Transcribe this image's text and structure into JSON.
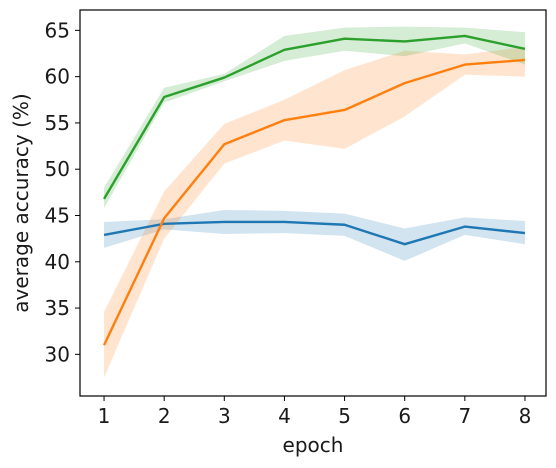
{
  "chart_data": {
    "type": "line",
    "xlabel": "epoch",
    "ylabel": "average accuracy (%)",
    "xlim": [
      0.6,
      8.35
    ],
    "ylim": [
      25.5,
      67.2
    ],
    "x_ticks": [
      1,
      2,
      3,
      4,
      5,
      6,
      7,
      8
    ],
    "y_ticks": [
      30,
      35,
      40,
      45,
      50,
      55,
      60,
      65
    ],
    "grid": false,
    "x": [
      1,
      2,
      3,
      4,
      5,
      6,
      7,
      8
    ],
    "series": [
      {
        "color": "#1f77b4",
        "values": [
          42.9,
          44.1,
          44.3,
          44.3,
          44.0,
          41.9,
          43.8,
          43.1
        ],
        "lower": [
          41.5,
          43.5,
          43.0,
          43.1,
          42.8,
          40.1,
          42.9,
          41.9
        ],
        "upper": [
          44.3,
          44.6,
          45.6,
          45.5,
          45.2,
          43.6,
          44.8,
          44.4
        ]
      },
      {
        "color": "#ff7f0e",
        "values": [
          31.0,
          44.7,
          52.7,
          55.3,
          56.4,
          59.3,
          61.3,
          61.8
        ],
        "lower": [
          27.5,
          42.5,
          50.6,
          53.1,
          52.2,
          55.7,
          60.2,
          60.0
        ],
        "upper": [
          34.6,
          47.6,
          54.9,
          57.5,
          60.7,
          62.8,
          62.4,
          63.2
        ]
      },
      {
        "color": "#2ca02c",
        "values": [
          46.8,
          57.8,
          59.9,
          62.9,
          64.1,
          63.8,
          64.4,
          63.0
        ],
        "lower": [
          45.8,
          57.2,
          59.5,
          61.7,
          62.8,
          62.2,
          63.6,
          61.3
        ],
        "upper": [
          48.0,
          58.8,
          60.3,
          64.4,
          65.3,
          65.4,
          65.3,
          64.8
        ]
      }
    ]
  }
}
